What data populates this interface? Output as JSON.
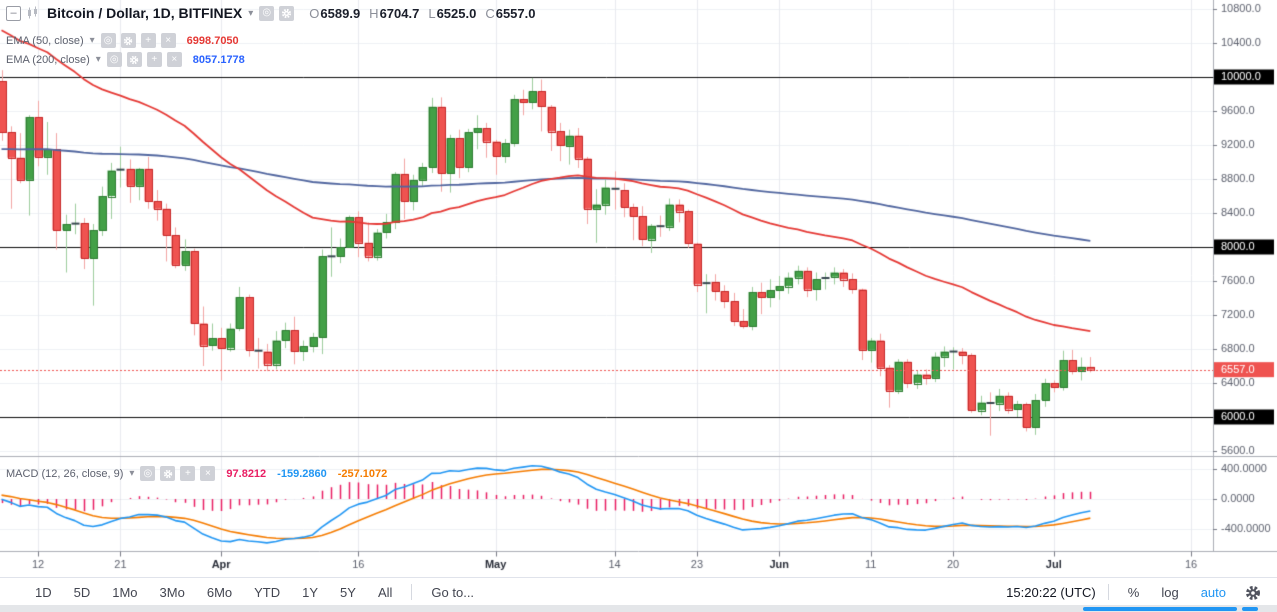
{
  "header": {
    "title": "Bitcoin / Dollar, 1D, BITFINEX",
    "ohlc": [
      {
        "k": "O",
        "v": "6589.9"
      },
      {
        "k": "H",
        "v": "6704.7"
      },
      {
        "k": "L",
        "v": "6525.0"
      },
      {
        "k": "C",
        "v": "6557.0"
      }
    ]
  },
  "icons": {
    "collapse": "–",
    "eye": "◎",
    "plus": "+",
    "close": "×",
    "caret": "▾"
  },
  "indicators": {
    "ema50": {
      "label": "EMA (50, close)",
      "value": "6998.7050",
      "color": "#e53935"
    },
    "ema200": {
      "label": "EMA (200, close)",
      "value": "8057.1778",
      "color": "#2962ff"
    },
    "macd": {
      "label": "MACD (12, 26, close, 9)",
      "values": [
        {
          "value": "97.8212",
          "color": "#e91e63"
        },
        {
          "value": "-159.2860",
          "color": "#2196f3"
        },
        {
          "value": "-257.1072",
          "color": "#f57c00"
        }
      ]
    }
  },
  "toolbar": {
    "ranges": [
      "1D",
      "5D",
      "1Mo",
      "3Mo",
      "6Mo",
      "YTD",
      "1Y",
      "5Y",
      "All"
    ],
    "goto": "Go to...",
    "clock": "15:20:22 (UTC)",
    "percent": "%",
    "log": "log",
    "auto": "auto"
  },
  "chart_data": {
    "type": "candlestick",
    "title": "Bitcoin / Dollar, 1D, BITFINEX",
    "colors": {
      "up_fill": "#43a047",
      "up_border": "#2e7d32",
      "up_wick": "#9ccc9c",
      "down_fill": "#ef5350",
      "down_border": "#c62828",
      "down_wick": "#f2a5a3",
      "doji": "#37474f",
      "ema50": "#e53935",
      "ema200": "#51669f",
      "macd_line": "#2196f3",
      "signal_line": "#f57c00",
      "histogram": "#e91e63",
      "level_line": "#0a0a0a",
      "last_price": "#ef5350",
      "grid_v": "#e8eaef",
      "grid_h": "#eef1f5",
      "axis_border": "#aaadb5",
      "axis_text": "#5d616e",
      "month_text": "#2a2e39"
    },
    "price_axis": {
      "tick_min": 5600,
      "tick_max": 10800,
      "tick_step": 400,
      "level_lines": [
        10000,
        8000,
        6000
      ],
      "last_price": 6557.0,
      "last_price_label": "6557.0"
    },
    "macd_axis": {
      "ticks": [
        400,
        0,
        -400
      ]
    },
    "time_ticks": [
      {
        "i": 4,
        "label": "12",
        "bold": false
      },
      {
        "i": 13,
        "label": "21",
        "bold": false
      },
      {
        "i": 24,
        "label": "Apr",
        "bold": true
      },
      {
        "i": 39,
        "label": "16",
        "bold": false
      },
      {
        "i": 54,
        "label": "May",
        "bold": true
      },
      {
        "i": 67,
        "label": "14",
        "bold": false
      },
      {
        "i": 76,
        "label": "23",
        "bold": false
      },
      {
        "i": 85,
        "label": "Jun",
        "bold": true
      },
      {
        "i": 95,
        "label": "11",
        "bold": false
      },
      {
        "i": 104,
        "label": "20",
        "bold": false
      },
      {
        "i": 115,
        "label": "Jul",
        "bold": true
      },
      {
        "i": 130,
        "label": "16",
        "bold": false
      }
    ],
    "overlays": {
      "ema50_period": 50,
      "ema50_seed": 10600,
      "ema200_period": 200,
      "ema200_seed": 9150
    },
    "macd_params": {
      "fast": 12,
      "slow": 26,
      "signal": 9,
      "ema12_seed": 9620,
      "ema26_seed": 9600,
      "signal_seed": 65
    },
    "candles": [
      [
        9950,
        10080,
        9250,
        9350
      ],
      [
        9350,
        9420,
        8450,
        9050
      ],
      [
        9050,
        9340,
        8750,
        8790
      ],
      [
        8790,
        9550,
        8370,
        9530
      ],
      [
        9530,
        9720,
        8950,
        9060
      ],
      [
        9060,
        9470,
        8850,
        9150
      ],
      [
        9150,
        9340,
        7970,
        8200
      ],
      [
        8200,
        8380,
        7700,
        8270
      ],
      [
        8270,
        8510,
        8150,
        8280
      ],
      [
        8280,
        8340,
        7740,
        7870
      ],
      [
        7870,
        8270,
        7310,
        8200
      ],
      [
        8200,
        8710,
        8130,
        8600
      ],
      [
        8600,
        8990,
        8330,
        8900
      ],
      [
        8900,
        9180,
        8700,
        8920
      ],
      [
        8920,
        9030,
        8520,
        8720
      ],
      [
        8720,
        8930,
        8550,
        8920
      ],
      [
        8920,
        9060,
        8450,
        8540
      ],
      [
        8540,
        8670,
        8310,
        8450
      ],
      [
        8450,
        8510,
        7830,
        8140
      ],
      [
        8140,
        8230,
        7750,
        7790
      ],
      [
        7790,
        8090,
        7720,
        7950
      ],
      [
        7950,
        7980,
        6960,
        7100
      ],
      [
        7100,
        7300,
        6600,
        6840
      ],
      [
        6840,
        7100,
        6780,
        6925
      ],
      [
        6925,
        7050,
        6430,
        6810
      ],
      [
        6810,
        7100,
        6770,
        7040
      ],
      [
        7040,
        7530,
        7010,
        7410
      ],
      [
        7410,
        7440,
        6710,
        6790
      ],
      [
        6790,
        6930,
        6570,
        6770
      ],
      [
        6770,
        6860,
        6540,
        6620
      ],
      [
        6620,
        7010,
        6560,
        6900
      ],
      [
        6900,
        7110,
        6810,
        7020
      ],
      [
        7020,
        7180,
        6620,
        6770
      ],
      [
        6770,
        6900,
        6660,
        6830
      ],
      [
        6830,
        6990,
        6760,
        6940
      ],
      [
        6940,
        7970,
        6740,
        7890
      ],
      [
        7890,
        8230,
        7650,
        7890
      ],
      [
        7890,
        8100,
        7810,
        8000
      ],
      [
        8000,
        8370,
        7990,
        8350
      ],
      [
        8350,
        8420,
        7880,
        8050
      ],
      [
        8050,
        8290,
        7830,
        7890
      ],
      [
        7890,
        8210,
        7840,
        8170
      ],
      [
        8170,
        8390,
        8100,
        8290
      ],
      [
        8290,
        8880,
        8210,
        8860
      ],
      [
        8860,
        9040,
        8330,
        8540
      ],
      [
        8540,
        8850,
        8430,
        8790
      ],
      [
        8790,
        8990,
        8710,
        8940
      ],
      [
        8940,
        9755,
        8870,
        9650
      ],
      [
        9650,
        9760,
        8650,
        8870
      ],
      [
        8870,
        9320,
        8640,
        9280
      ],
      [
        9280,
        9380,
        8810,
        8940
      ],
      [
        8940,
        9390,
        8880,
        9350
      ],
      [
        9350,
        9550,
        9150,
        9400
      ],
      [
        9400,
        9460,
        9050,
        9240
      ],
      [
        9240,
        9260,
        8850,
        9070
      ],
      [
        9070,
        9270,
        8990,
        9220
      ],
      [
        9220,
        9790,
        9180,
        9740
      ],
      [
        9740,
        9850,
        9550,
        9700
      ],
      [
        9700,
        9990,
        9620,
        9830
      ],
      [
        9830,
        9970,
        9360,
        9650
      ],
      [
        9650,
        9670,
        9130,
        9360
      ],
      [
        9360,
        9460,
        9010,
        9190
      ],
      [
        9190,
        9380,
        8970,
        9310
      ],
      [
        9310,
        9400,
        8930,
        9040
      ],
      [
        9040,
        9060,
        8270,
        8450
      ],
      [
        8450,
        8680,
        8050,
        8500
      ],
      [
        8500,
        8790,
        8380,
        8700
      ],
      [
        8700,
        8890,
        8440,
        8670
      ],
      [
        8670,
        8750,
        8350,
        8470
      ],
      [
        8470,
        8510,
        8080,
        8360
      ],
      [
        8360,
        8480,
        8010,
        8090
      ],
      [
        8090,
        8270,
        7930,
        8250
      ],
      [
        8250,
        8370,
        8120,
        8240
      ],
      [
        8240,
        8570,
        8190,
        8500
      ],
      [
        8500,
        8560,
        8290,
        8420
      ],
      [
        8420,
        8440,
        7990,
        8040
      ],
      [
        8040,
        8050,
        7470,
        7560
      ],
      [
        7560,
        7680,
        7220,
        7590
      ],
      [
        7590,
        7680,
        7370,
        7480
      ],
      [
        7480,
        7550,
        7280,
        7360
      ],
      [
        7360,
        7460,
        7070,
        7130
      ],
      [
        7130,
        7270,
        7040,
        7070
      ],
      [
        7070,
        7530,
        7020,
        7470
      ],
      [
        7470,
        7580,
        7210,
        7410
      ],
      [
        7410,
        7620,
        7290,
        7490
      ],
      [
        7490,
        7660,
        7380,
        7540
      ],
      [
        7540,
        7700,
        7450,
        7640
      ],
      [
        7640,
        7780,
        7560,
        7720
      ],
      [
        7720,
        7760,
        7410,
        7500
      ],
      [
        7500,
        7700,
        7370,
        7620
      ],
      [
        7620,
        7700,
        7500,
        7650
      ],
      [
        7650,
        7760,
        7560,
        7700
      ],
      [
        7700,
        7740,
        7530,
        7620
      ],
      [
        7620,
        7690,
        7450,
        7500
      ],
      [
        7500,
        7510,
        6670,
        6790
      ],
      [
        6790,
        6930,
        6640,
        6900
      ],
      [
        6900,
        6980,
        6480,
        6580
      ],
      [
        6580,
        6610,
        6110,
        6310
      ],
      [
        6310,
        6680,
        6270,
        6650
      ],
      [
        6650,
        6680,
        6340,
        6400
      ],
      [
        6400,
        6550,
        6330,
        6500
      ],
      [
        6500,
        6560,
        6380,
        6460
      ],
      [
        6460,
        6760,
        6410,
        6710
      ],
      [
        6710,
        6830,
        6590,
        6770
      ],
      [
        6770,
        6820,
        6560,
        6770
      ],
      [
        6770,
        6810,
        6620,
        6730
      ],
      [
        6730,
        6750,
        6050,
        6080
      ],
      [
        6080,
        6250,
        6020,
        6170
      ],
      [
        6170,
        6290,
        5780,
        6160
      ],
      [
        6160,
        6330,
        6070,
        6250
      ],
      [
        6250,
        6290,
        6040,
        6090
      ],
      [
        6090,
        6190,
        6000,
        6150
      ],
      [
        6150,
        6170,
        5830,
        5880
      ],
      [
        5880,
        6270,
        5790,
        6200
      ],
      [
        6200,
        6450,
        6120,
        6400
      ],
      [
        6400,
        6430,
        6290,
        6350
      ],
      [
        6350,
        6780,
        6310,
        6670
      ],
      [
        6670,
        6790,
        6500,
        6540
      ],
      [
        6540,
        6700,
        6430,
        6590
      ],
      [
        6589.9,
        6704.7,
        6525.0,
        6557.0
      ]
    ]
  }
}
